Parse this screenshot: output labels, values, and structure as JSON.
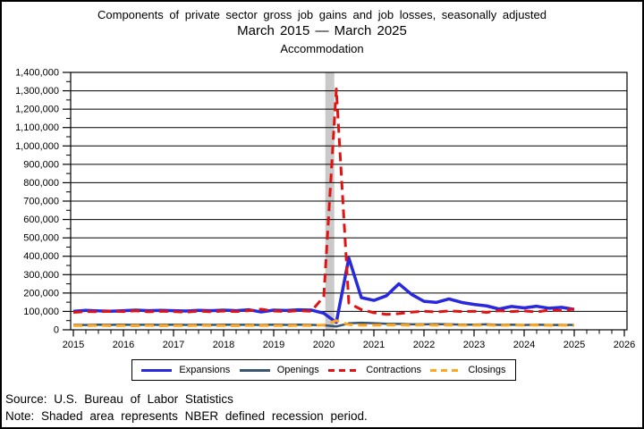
{
  "title": {
    "line1": "Components of private sector gross job gains and job losses, seasonally adjusted",
    "line2": "March 2015 — March 2025",
    "line3": "Accommodation"
  },
  "source_line": "Source: U.S. Bureau of Labor Statistics",
  "note_line": "Note: Shaded area represents NBER defined recession period.",
  "legend": {
    "items": [
      {
        "label": "Expansions",
        "color": "#2828DC",
        "style": "solid"
      },
      {
        "label": "Openings",
        "color": "#39556F",
        "style": "solid"
      },
      {
        "label": "Contractions",
        "color": "#E01212",
        "style": "dashed"
      },
      {
        "label": "Closings",
        "color": "#FFA51E",
        "style": "dashed"
      }
    ]
  },
  "axes": {
    "y_tick_labels": [
      "0",
      "100,000",
      "200,000",
      "300,000",
      "400,000",
      "500,000",
      "600,000",
      "700,000",
      "800,000",
      "900,000",
      "1,000,000",
      "1,100,000",
      "1,200,000",
      "1,300,000",
      "1,400,000"
    ],
    "x_tick_labels": [
      "2015",
      "2016",
      "2017",
      "2018",
      "2019",
      "2020",
      "2021",
      "2022",
      "2023",
      "2024",
      "2025",
      "2026"
    ]
  },
  "recession": {
    "start": 2020.03,
    "end": 2020.21,
    "color": "#C9C9C9"
  },
  "chart_data": {
    "type": "line",
    "title": "Components of private sector gross job gains and job losses, seasonally adjusted",
    "subtitle": "March 2015 — March 2025",
    "industry": "Accommodation",
    "xlabel": "",
    "ylabel": "",
    "xlim": [
      2015,
      2026
    ],
    "ylim": [
      0,
      1400000
    ],
    "grid": "horizontal",
    "legend_position": "bottom",
    "x": [
      2015.0,
      2015.25,
      2015.5,
      2015.75,
      2016.0,
      2016.25,
      2016.5,
      2016.75,
      2017.0,
      2017.25,
      2017.5,
      2017.75,
      2018.0,
      2018.25,
      2018.5,
      2018.75,
      2019.0,
      2019.25,
      2019.5,
      2019.75,
      2020.0,
      2020.25,
      2020.5,
      2020.75,
      2021.0,
      2021.25,
      2021.5,
      2021.75,
      2022.0,
      2022.25,
      2022.5,
      2022.75,
      2023.0,
      2023.25,
      2023.5,
      2023.75,
      2024.0,
      2024.25,
      2024.5,
      2024.75,
      2025.0
    ],
    "series": [
      {
        "name": "Expansions",
        "color": "#2828DC",
        "dash": "solid",
        "width": 3.5,
        "values": [
          100000,
          106000,
          103000,
          101000,
          104000,
          107000,
          104000,
          106000,
          104000,
          102000,
          106000,
          104000,
          107000,
          104000,
          109000,
          97000,
          107000,
          105000,
          109000,
          107000,
          90000,
          40000,
          390000,
          175000,
          160000,
          185000,
          250000,
          193000,
          155000,
          149000,
          168000,
          149000,
          138000,
          130000,
          113000,
          127000,
          119000,
          128000,
          117000,
          122000,
          111000
        ]
      },
      {
        "name": "Openings",
        "color": "#39556F",
        "dash": "solid",
        "width": 2.5,
        "values": [
          27000,
          26000,
          28000,
          27000,
          28000,
          27000,
          28000,
          27000,
          28000,
          27000,
          28000,
          27000,
          28000,
          27000,
          28000,
          26000,
          28000,
          27000,
          28000,
          27000,
          25000,
          18000,
          35000,
          38000,
          36000,
          33000,
          32000,
          30000,
          30000,
          31000,
          30000,
          28000,
          28000,
          30000,
          27000,
          28000,
          26000,
          28000,
          26000,
          27000,
          26000
        ]
      },
      {
        "name": "Contractions",
        "color": "#E01212",
        "dash": "dashed",
        "width": 3,
        "values": [
          95000,
          99000,
          98000,
          101000,
          99000,
          103000,
          98000,
          101000,
          99000,
          96000,
          102000,
          98000,
          102000,
          99000,
          104000,
          112000,
          102000,
          99000,
          104000,
          101000,
          180000,
          1310000,
          145000,
          110000,
          93000,
          84000,
          88000,
          96000,
          101000,
          97000,
          103000,
          99000,
          101000,
          95000,
          104000,
          99000,
          103000,
          97000,
          107000,
          104000,
          113000
        ]
      },
      {
        "name": "Closings",
        "color": "#FFA51E",
        "dash": "dashed",
        "width": 3,
        "values": [
          23000,
          22000,
          24000,
          22000,
          23000,
          22000,
          24000,
          22000,
          23000,
          22000,
          24000,
          23000,
          23000,
          22000,
          24000,
          23000,
          23000,
          22000,
          24000,
          23000,
          26000,
          50000,
          28000,
          25000,
          25000,
          26000,
          26000,
          25000,
          26000,
          25000,
          26000,
          25000,
          25000,
          26000,
          24000,
          26000,
          25000,
          26000,
          24000,
          25000,
          24000
        ]
      }
    ]
  }
}
